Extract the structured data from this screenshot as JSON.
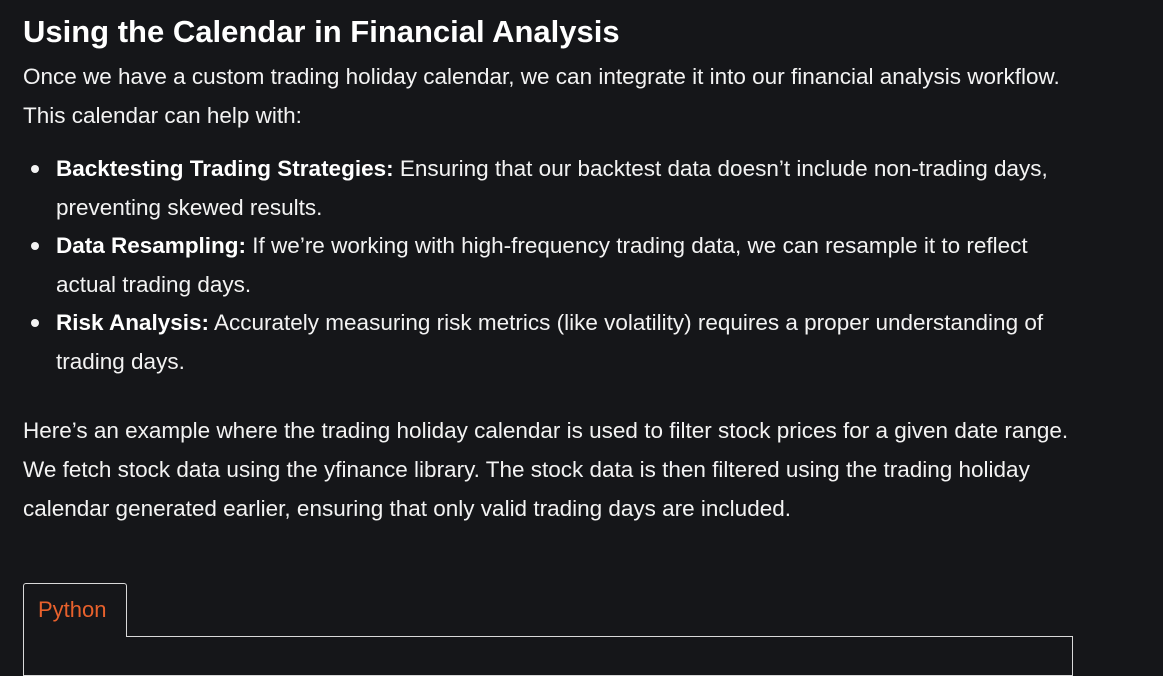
{
  "heading": "Using the Calendar in Financial Analysis",
  "intro": "Once we have a custom trading holiday calendar, we can integrate it into our financial analysis workflow. This calendar can help with:",
  "bullets": [
    {
      "label": "Backtesting Trading Strategies:",
      "text": " Ensuring that our backtest data doesn’t include non-trading days, preventing skewed results."
    },
    {
      "label": "Data Resampling:",
      "text": " If we’re working with high-frequency trading data, we can resample it to reflect actual trading days."
    },
    {
      "label": "Risk Analysis:",
      "text": " Accurately measuring risk metrics (like volatility) requires a proper understanding of trading days."
    }
  ],
  "example_paragraph": "Here’s an example where the trading holiday calendar is used to filter stock prices for a given date range. We fetch stock data using the yfinance library. The stock data is then filtered using the trading holiday calendar generated earlier, ensuring that only valid trading days are included.",
  "code_tabs": [
    {
      "label": "Python",
      "active": true
    }
  ],
  "colors": {
    "background": "#151619",
    "text": "#f3f3f3",
    "tab_label": "#e8612c",
    "border": "#d9d9d9"
  }
}
